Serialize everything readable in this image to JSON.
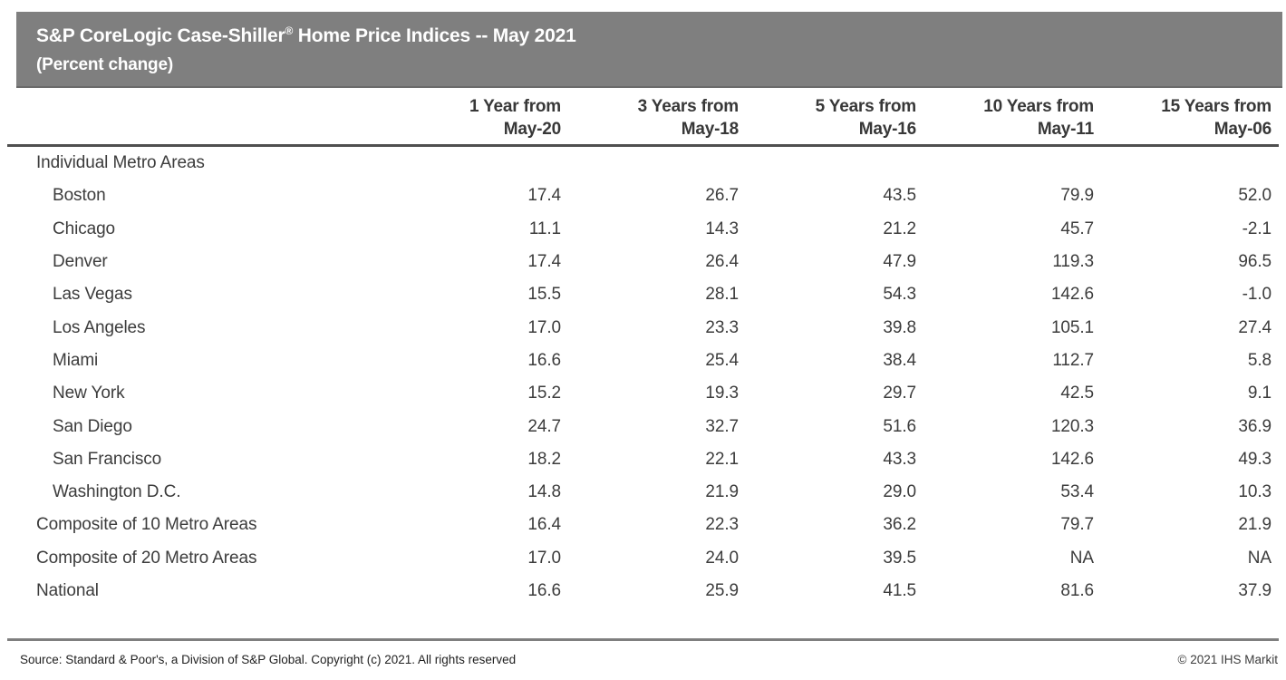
{
  "title": {
    "part1": "S&P CoreLogic Case-Shiller",
    "registered_mark": "®",
    "part2": " Home Price Indices -- May 2021",
    "subtitle": "(Percent change)"
  },
  "chart_data": {
    "type": "table",
    "title": "S&P CoreLogic Case-Shiller® Home Price Indices -- May 2021",
    "subtitle": "(Percent change)",
    "column_headers": [
      {
        "line1": "1 Year from",
        "line2": "May-20"
      },
      {
        "line1": "3 Years from",
        "line2": "May-18"
      },
      {
        "line1": "5 Years from",
        "line2": "May-16"
      },
      {
        "line1": "10 Years from",
        "line2": "May-11"
      },
      {
        "line1": "15 Years from",
        "line2": "May-06"
      }
    ],
    "rows": [
      {
        "label": "Individual Metro Areas",
        "type": "section",
        "values": [
          "",
          "",
          "",
          "",
          ""
        ]
      },
      {
        "label": "Boston",
        "type": "city",
        "values": [
          "17.4",
          "26.7",
          "43.5",
          "79.9",
          "52.0"
        ]
      },
      {
        "label": "Chicago",
        "type": "city",
        "values": [
          "11.1",
          "14.3",
          "21.2",
          "45.7",
          "-2.1"
        ]
      },
      {
        "label": "Denver",
        "type": "city",
        "values": [
          "17.4",
          "26.4",
          "47.9",
          "119.3",
          "96.5"
        ]
      },
      {
        "label": "Las Vegas",
        "type": "city",
        "values": [
          "15.5",
          "28.1",
          "54.3",
          "142.6",
          "-1.0"
        ]
      },
      {
        "label": "Los Angeles",
        "type": "city",
        "values": [
          "17.0",
          "23.3",
          "39.8",
          "105.1",
          "27.4"
        ]
      },
      {
        "label": "Miami",
        "type": "city",
        "values": [
          "16.6",
          "25.4",
          "38.4",
          "112.7",
          "5.8"
        ]
      },
      {
        "label": "New York",
        "type": "city",
        "values": [
          "15.2",
          "19.3",
          "29.7",
          "42.5",
          "9.1"
        ]
      },
      {
        "label": "San Diego",
        "type": "city",
        "values": [
          "24.7",
          "32.7",
          "51.6",
          "120.3",
          "36.9"
        ]
      },
      {
        "label": "San Francisco",
        "type": "city",
        "values": [
          "18.2",
          "22.1",
          "43.3",
          "142.6",
          "49.3"
        ]
      },
      {
        "label": "Washington D.C.",
        "type": "city",
        "values": [
          "14.8",
          "21.9",
          "29.0",
          "53.4",
          "10.3"
        ]
      },
      {
        "label": "Composite of 10 Metro Areas",
        "type": "composite",
        "values": [
          "16.4",
          "22.3",
          "36.2",
          "79.7",
          "21.9"
        ]
      },
      {
        "label": "Composite of 20 Metro Areas",
        "type": "composite",
        "values": [
          "17.0",
          "24.0",
          "39.5",
          "NA",
          "NA"
        ]
      },
      {
        "label": "National",
        "type": "composite",
        "values": [
          "16.6",
          "25.9",
          "41.5",
          "81.6",
          "37.9"
        ]
      }
    ]
  },
  "footer": {
    "source": "Source: Standard & Poor's, a Division of S&P Global. Copyright (c) 2021. All rights reserved",
    "copyright": "© 2021 IHS Markit"
  },
  "colors": {
    "title_bar_bg": "#7f7f7f",
    "title_text": "#ffffff",
    "header_rule": "#4f4f4f",
    "bottom_rule": "#7f7f7f",
    "table_text": "#3c3c3c"
  }
}
